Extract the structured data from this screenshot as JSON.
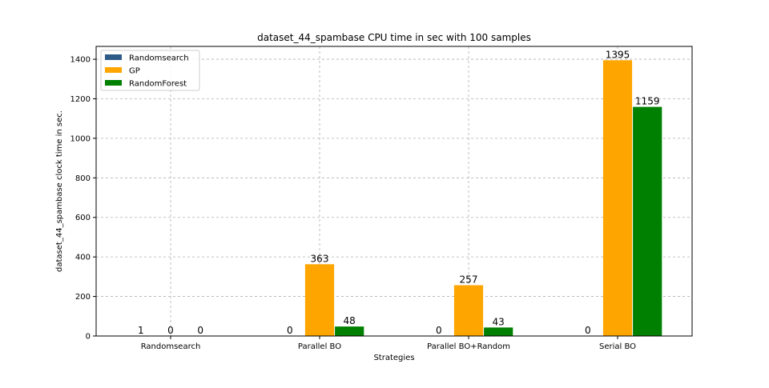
{
  "chart_data": {
    "type": "bar",
    "title": "dataset_44_spambase CPU time in sec with 100 samples",
    "xlabel": "Strategies",
    "ylabel": "dataset_44_spambase clock time in sec.",
    "categories": [
      "Randomsearch",
      "Parallel BO",
      "Parallel BO+Random",
      "Serial BO"
    ],
    "ylim": [
      0,
      1465
    ],
    "yticks": [
      0,
      200,
      400,
      600,
      800,
      1000,
      1200,
      1400
    ],
    "grid": true,
    "legend_position": "top-left",
    "series": [
      {
        "name": "Randomsearch",
        "color": "#2e5a87",
        "values": [
          1,
          0,
          0,
          0
        ]
      },
      {
        "name": "GP",
        "color": "#ffa500",
        "values": [
          0,
          363,
          257,
          1395
        ]
      },
      {
        "name": "RandomForest",
        "color": "#008000",
        "values": [
          0,
          48,
          43,
          1159
        ]
      }
    ]
  }
}
